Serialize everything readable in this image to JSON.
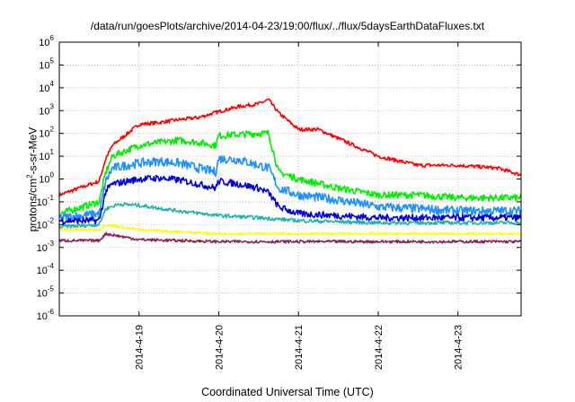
{
  "chart_data": {
    "type": "line",
    "title": "/data/run/goesPlots/archive/2014-04-23/19:00/flux/../flux/5daysEarthDataFluxes.txt",
    "xlabel": "Coordinated Universal Time (UTC)",
    "ylabel": "protons/cm2-s-sr-MeV",
    "ylabel_parts": {
      "before": "protons/cm",
      "sup": "2",
      "after": "-s-sr-MeV"
    },
    "yscale": "log",
    "ylim_exp": [
      -6,
      6
    ],
    "ytick_exponents": [
      6,
      5,
      4,
      3,
      2,
      1,
      0,
      -1,
      -2,
      -3,
      -4,
      -5,
      -6
    ],
    "ytick_base": "10",
    "xlim": [
      "2014-04-18T00:00",
      "2014-04-23T19:00"
    ],
    "xticks": [
      "2014-4-19",
      "2014-4-20",
      "2014-4-21",
      "2014-4-22",
      "2014-4-23"
    ],
    "grid": true,
    "series": [
      {
        "color": "#ff0000",
        "noise": 0.08,
        "x": [
          "2014-04-18T00:00",
          "2014-04-18T12:00",
          "2014-04-18T14:00",
          "2014-04-18T16:00",
          "2014-04-19T00:00",
          "2014-04-19T06:00",
          "2014-04-19T12:00",
          "2014-04-19T18:00",
          "2014-04-20T00:00",
          "2014-04-20T06:00",
          "2014-04-20T12:00",
          "2014-04-20T15:00",
          "2014-04-20T18:00",
          "2014-04-21T00:00",
          "2014-04-21T06:00",
          "2014-04-21T12:00",
          "2014-04-22T00:00",
          "2014-04-22T12:00",
          "2014-04-23T00:00",
          "2014-04-23T12:00",
          "2014-04-23T19:00"
        ],
        "y": [
          0.2,
          0.8,
          8,
          30,
          250,
          300,
          400,
          500,
          900,
          1500,
          2000,
          3000,
          800,
          150,
          150,
          60,
          10,
          4,
          4,
          3,
          1.5
        ]
      },
      {
        "color": "#00ee00",
        "noise": 0.15,
        "x": [
          "2014-04-18T00:00",
          "2014-04-18T12:00",
          "2014-04-18T14:00",
          "2014-04-18T16:00",
          "2014-04-19T00:00",
          "2014-04-19T06:00",
          "2014-04-19T12:00",
          "2014-04-19T18:00",
          "2014-04-19T23:00",
          "2014-04-20T00:00",
          "2014-04-20T06:00",
          "2014-04-20T12:00",
          "2014-04-20T15:00",
          "2014-04-20T18:00",
          "2014-04-21T00:00",
          "2014-04-21T12:00",
          "2014-04-22T00:00",
          "2014-04-22T12:00",
          "2014-04-23T00:00",
          "2014-04-23T19:00"
        ],
        "y": [
          0.03,
          0.1,
          2,
          10,
          30,
          40,
          50,
          40,
          30,
          80,
          90,
          100,
          100,
          2,
          1,
          0.4,
          0.2,
          0.2,
          0.15,
          0.15
        ]
      },
      {
        "color": "#1e90ff",
        "noise": 0.2,
        "x": [
          "2014-04-18T00:00",
          "2014-04-18T12:00",
          "2014-04-18T14:00",
          "2014-04-18T16:00",
          "2014-04-19T00:00",
          "2014-04-19T06:00",
          "2014-04-19T12:00",
          "2014-04-19T18:00",
          "2014-04-19T23:00",
          "2014-04-20T00:00",
          "2014-04-20T06:00",
          "2014-04-20T12:00",
          "2014-04-20T15:00",
          "2014-04-20T18:00",
          "2014-04-21T00:00",
          "2014-04-21T12:00",
          "2014-04-22T00:00",
          "2014-04-22T12:00",
          "2014-04-23T00:00",
          "2014-04-23T19:00"
        ],
        "y": [
          0.02,
          0.03,
          0.8,
          3,
          5,
          6,
          5,
          3,
          2,
          8,
          7,
          4,
          3,
          0.4,
          0.2,
          0.12,
          0.06,
          0.05,
          0.04,
          0.04
        ]
      },
      {
        "color": "#0000dd",
        "noise": 0.15,
        "x": [
          "2014-04-18T00:00",
          "2014-04-18T12:00",
          "2014-04-18T14:00",
          "2014-04-18T16:00",
          "2014-04-19T00:00",
          "2014-04-19T06:00",
          "2014-04-19T12:00",
          "2014-04-19T18:00",
          "2014-04-19T23:00",
          "2014-04-20T00:00",
          "2014-04-20T06:00",
          "2014-04-20T12:00",
          "2014-04-20T15:00",
          "2014-04-20T18:00",
          "2014-04-21T00:00",
          "2014-04-21T12:00",
          "2014-04-22T00:00",
          "2014-04-23T00:00",
          "2014-04-23T19:00"
        ],
        "y": [
          0.015,
          0.015,
          0.3,
          0.6,
          1,
          1.1,
          0.9,
          0.6,
          0.4,
          0.8,
          0.6,
          0.4,
          0.25,
          0.06,
          0.03,
          0.025,
          0.02,
          0.02,
          0.02
        ]
      },
      {
        "color": "#20b2aa",
        "noise": 0.08,
        "x": [
          "2014-04-18T00:00",
          "2014-04-18T12:00",
          "2014-04-18T14:00",
          "2014-04-18T18:00",
          "2014-04-19T00:00",
          "2014-04-19T12:00",
          "2014-04-20T00:00",
          "2014-04-20T12:00",
          "2014-04-21T00:00",
          "2014-04-22T00:00",
          "2014-04-23T00:00",
          "2014-04-23T19:00"
        ],
        "y": [
          0.008,
          0.01,
          0.05,
          0.08,
          0.07,
          0.04,
          0.025,
          0.02,
          0.015,
          0.012,
          0.012,
          0.012
        ]
      },
      {
        "color": "#ffff00",
        "noise": 0.05,
        "x": [
          "2014-04-18T00:00",
          "2014-04-18T12:00",
          "2014-04-18T14:00",
          "2014-04-19T00:00",
          "2014-04-20T00:00",
          "2014-04-21T00:00",
          "2014-04-22T00:00",
          "2014-04-23T00:00",
          "2014-04-23T19:00"
        ],
        "y": [
          0.006,
          0.006,
          0.01,
          0.006,
          0.004,
          0.004,
          0.004,
          0.004,
          0.004
        ]
      },
      {
        "color": "#8b2252",
        "noise": 0.06,
        "x": [
          "2014-04-18T00:00",
          "2014-04-18T12:00",
          "2014-04-18T14:00",
          "2014-04-19T00:00",
          "2014-04-20T00:00",
          "2014-04-21T00:00",
          "2014-04-22T00:00",
          "2014-04-23T00:00",
          "2014-04-23T19:00"
        ],
        "y": [
          0.002,
          0.002,
          0.004,
          0.0022,
          0.0018,
          0.0018,
          0.0018,
          0.0018,
          0.0018
        ]
      }
    ]
  }
}
